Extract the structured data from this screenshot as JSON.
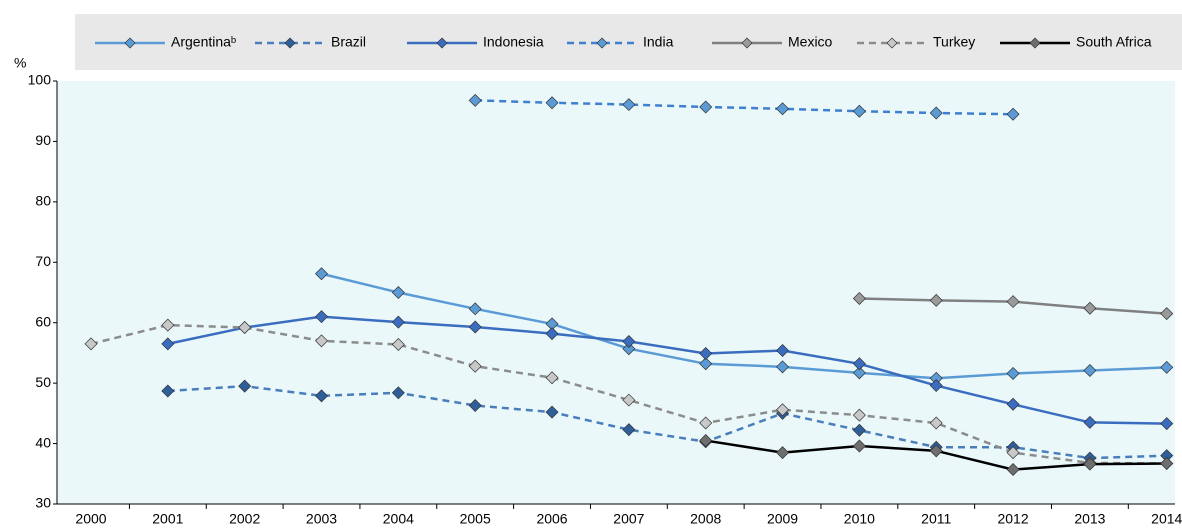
{
  "chart_data": {
    "type": "line",
    "y_label": "%",
    "categories": [
      "2000",
      "2001",
      "2002",
      "2003",
      "2004",
      "2005",
      "2006",
      "2007",
      "2008",
      "2009",
      "2010",
      "2011",
      "2012",
      "2013",
      "2014"
    ],
    "ylim": [
      30,
      100
    ],
    "yticks": [
      30,
      40,
      50,
      60,
      70,
      80,
      90,
      100
    ],
    "series": [
      {
        "name": "Argentinaᵇ",
        "color": "#5b9bd5",
        "marker_color": "#5b9bd5",
        "dashed": false,
        "values": [
          null,
          null,
          null,
          68.1,
          65,
          62.3,
          59.8,
          55.7,
          53.2,
          52.7,
          51.7,
          50.8,
          51.6,
          52.1,
          52.6
        ]
      },
      {
        "name": "Brazil",
        "color": "#4a7ebb",
        "marker_color": "#2f5f9a",
        "dashed": true,
        "values": [
          null,
          48.7,
          49.5,
          47.9,
          48.4,
          46.3,
          45.2,
          42.3,
          40.3,
          45,
          42.2,
          39.4,
          39.4,
          37.6,
          38
        ]
      },
      {
        "name": "Indonesia",
        "color": "#3a6cc0",
        "marker_color": "#3a6cc0",
        "dashed": false,
        "values": [
          null,
          56.5,
          59.2,
          61,
          60.1,
          59.3,
          58.2,
          56.9,
          54.9,
          55.4,
          53.2,
          49.6,
          46.5,
          43.5,
          43.3
        ]
      },
      {
        "name": "India",
        "color": "#3f7fcf",
        "marker_color": "#5b9bd5",
        "dashed": true,
        "values": [
          null,
          null,
          null,
          null,
          null,
          96.8,
          96.4,
          96.1,
          95.7,
          95.4,
          95,
          94.7,
          94.5,
          null,
          null
        ]
      },
      {
        "name": "Mexico",
        "color": "#808080",
        "marker_color": "#9a9a9a",
        "dashed": false,
        "values": [
          null,
          null,
          null,
          null,
          null,
          null,
          null,
          null,
          null,
          null,
          64,
          63.7,
          63.5,
          62.4,
          61.5
        ]
      },
      {
        "name": "Turkey",
        "color": "#8c8c8c",
        "marker_color": "#c8c8c8",
        "dashed": true,
        "values": [
          56.5,
          59.6,
          59.2,
          57,
          56.4,
          52.8,
          50.9,
          47.2,
          43.4,
          45.6,
          44.7,
          43.4,
          38.5,
          36.8,
          36.7
        ]
      },
      {
        "name": "South Africa",
        "color": "#000000",
        "marker_color": "#6e6e6e",
        "dashed": false,
        "values": [
          null,
          null,
          null,
          null,
          null,
          null,
          null,
          null,
          40.5,
          38.5,
          39.6,
          38.8,
          35.7,
          36.6,
          36.7
        ]
      }
    ]
  }
}
